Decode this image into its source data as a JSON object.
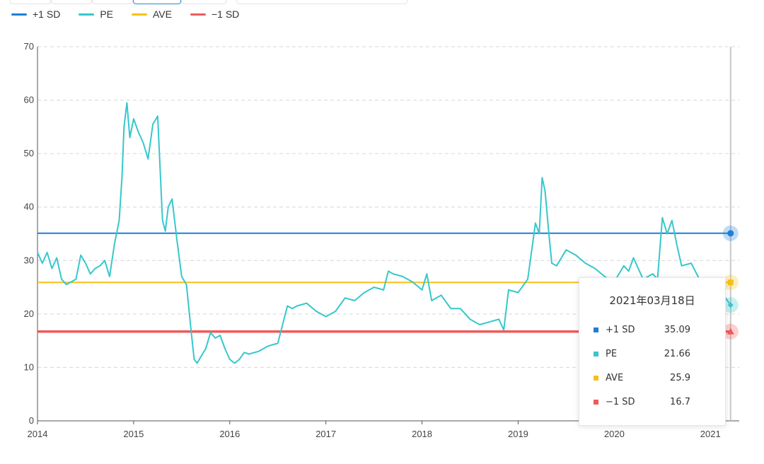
{
  "legend": {
    "plus_sd": "+1 SD",
    "pe": "PE",
    "ave": "AVE",
    "minus_sd": "−1 SD"
  },
  "colors": {
    "plus_sd": "#1f7fd6",
    "pe": "#36c7cd",
    "ave": "#f5c118",
    "minus_sd": "#ef5b5b"
  },
  "tooltip": {
    "date": "2021年03月18日",
    "rows": [
      {
        "name": "+1 SD",
        "value": "35.09"
      },
      {
        "name": "PE",
        "value": "21.66"
      },
      {
        "name": "AVE",
        "value": "25.9"
      },
      {
        "name": "−1 SD",
        "value": "16.7"
      }
    ]
  },
  "chart_data": {
    "type": "line",
    "title": "",
    "xlabel": "",
    "ylabel": "",
    "ylim": [
      0,
      70
    ],
    "xlim": [
      2014.0,
      2021.3
    ],
    "yticks": [
      0,
      10,
      20,
      30,
      40,
      50,
      60,
      70
    ],
    "xticks": [
      {
        "value": 2014,
        "label": "2014"
      },
      {
        "value": 2015,
        "label": "2015"
      },
      {
        "value": 2016,
        "label": "2016"
      },
      {
        "value": 2017,
        "label": "2017"
      },
      {
        "value": 2018,
        "label": "2018"
      },
      {
        "value": 2019,
        "label": "2019"
      },
      {
        "value": 2020,
        "label": "2020"
      },
      {
        "value": 2021,
        "label": "2021"
      }
    ],
    "grid": true,
    "legend_position": "top-left",
    "series": [
      {
        "name": "+1 SD",
        "key": "plus_sd",
        "x": [
          2014.0,
          2021.21
        ],
        "values": [
          35.09,
          35.09
        ]
      },
      {
        "name": "AVE",
        "key": "ave",
        "x": [
          2014.0,
          2021.21
        ],
        "values": [
          25.9,
          25.9
        ]
      },
      {
        "name": "−1 SD",
        "key": "minus_sd",
        "x": [
          2014.0,
          2021.21
        ],
        "values": [
          16.7,
          16.7
        ]
      },
      {
        "name": "PE",
        "key": "pe",
        "x": [
          2014.0,
          2014.05,
          2014.1,
          2014.15,
          2014.2,
          2014.25,
          2014.3,
          2014.35,
          2014.4,
          2014.45,
          2014.5,
          2014.55,
          2014.6,
          2014.65,
          2014.7,
          2014.75,
          2014.8,
          2014.85,
          2014.88,
          2014.9,
          2014.93,
          2014.96,
          2015.0,
          2015.05,
          2015.1,
          2015.15,
          2015.2,
          2015.25,
          2015.3,
          2015.33,
          2015.36,
          2015.4,
          2015.45,
          2015.5,
          2015.55,
          2015.6,
          2015.63,
          2015.66,
          2015.7,
          2015.75,
          2015.8,
          2015.85,
          2015.9,
          2015.95,
          2016.0,
          2016.05,
          2016.1,
          2016.15,
          2016.2,
          2016.3,
          2016.4,
          2016.5,
          2016.6,
          2016.65,
          2016.7,
          2016.8,
          2016.9,
          2017.0,
          2017.1,
          2017.2,
          2017.3,
          2017.4,
          2017.5,
          2017.6,
          2017.65,
          2017.7,
          2017.8,
          2017.9,
          2018.0,
          2018.05,
          2018.1,
          2018.2,
          2018.3,
          2018.4,
          2018.5,
          2018.6,
          2018.7,
          2018.8,
          2018.85,
          2018.9,
          2019.0,
          2019.1,
          2019.15,
          2019.18,
          2019.22,
          2019.25,
          2019.28,
          2019.32,
          2019.35,
          2019.4,
          2019.5,
          2019.6,
          2019.7,
          2019.8,
          2019.9,
          2020.0,
          2020.1,
          2020.15,
          2020.2,
          2020.3,
          2020.4,
          2020.45,
          2020.5,
          2020.55,
          2020.6,
          2020.65,
          2020.7,
          2020.8,
          2020.9,
          2021.0,
          2021.1,
          2021.21
        ],
        "values": [
          31.5,
          29.5,
          31.5,
          28.5,
          30.5,
          26.5,
          25.5,
          26.0,
          26.5,
          31.0,
          29.5,
          27.5,
          28.5,
          29.0,
          30.0,
          27.0,
          33.0,
          37.5,
          46.0,
          55.0,
          59.5,
          53.0,
          56.5,
          54.0,
          52.0,
          49.0,
          55.5,
          57.0,
          37.5,
          35.5,
          40.0,
          41.5,
          34.0,
          27.0,
          25.5,
          16.5,
          11.5,
          10.8,
          12.0,
          13.5,
          16.5,
          15.5,
          16.0,
          13.5,
          11.5,
          10.8,
          11.5,
          12.8,
          12.5,
          13.0,
          14.0,
          14.5,
          21.5,
          21.0,
          21.5,
          22.0,
          20.5,
          19.5,
          20.5,
          23.0,
          22.5,
          24.0,
          25.0,
          24.5,
          28.0,
          27.5,
          27.0,
          26.0,
          24.5,
          27.5,
          22.5,
          23.5,
          21.0,
          21.0,
          19.0,
          18.0,
          18.5,
          19.0,
          17.0,
          24.5,
          24.0,
          26.5,
          33.0,
          37.0,
          35.0,
          45.5,
          43.0,
          35.0,
          29.5,
          29.0,
          32.0,
          31.0,
          29.5,
          28.5,
          27.0,
          26.0,
          29.0,
          28.0,
          30.5,
          26.5,
          27.5,
          26.5,
          38.0,
          35.0,
          37.5,
          33.0,
          29.0,
          29.5,
          26.0,
          26.5,
          24.5,
          21.66
        ]
      }
    ]
  }
}
